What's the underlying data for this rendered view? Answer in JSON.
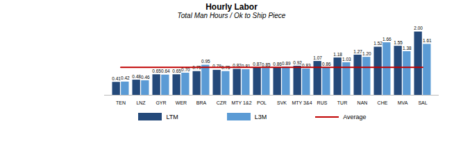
{
  "chart_data": {
    "type": "bar",
    "title": "Hourly Labor",
    "subtitle": "Total Man Hours / Ok to Ship Piece",
    "categories": [
      "TEN",
      "LNZ",
      "GYR",
      "WER",
      "BRA",
      "CZR",
      "MTY 1&2",
      "POL",
      "SVK",
      "MTY 3&4",
      "RUS",
      "TUR",
      "NAN",
      "CHE",
      "MVA",
      "SAL"
    ],
    "series": [
      {
        "name": "LTM",
        "color": "#24497a",
        "values": [
          0.41,
          0.48,
          0.65,
          0.65,
          0.75,
          0.79,
          0.82,
          0.87,
          0.86,
          0.92,
          1.07,
          1.18,
          1.27,
          1.52,
          1.55,
          2.0
        ]
      },
      {
        "name": "L3M",
        "color": "#5b9bd5",
        "values": [
          0.42,
          0.46,
          0.64,
          0.7,
          0.95,
          0.75,
          0.81,
          0.85,
          0.89,
          0.83,
          0.86,
          1.03,
          1.2,
          1.66,
          1.38,
          1.61
        ]
      },
      {
        "name": "Average",
        "type": "line",
        "color": "#c00000",
        "values": [
          0.88,
          0.88,
          0.88,
          0.88,
          0.88,
          0.88,
          0.88,
          0.88,
          0.88,
          0.88,
          0.88,
          0.88,
          0.88,
          0.88,
          0.88,
          0.88
        ]
      }
    ],
    "ylim": [
      0,
      2.1
    ],
    "data_labels": true,
    "tick_labels": "x",
    "legend": "bottom"
  }
}
